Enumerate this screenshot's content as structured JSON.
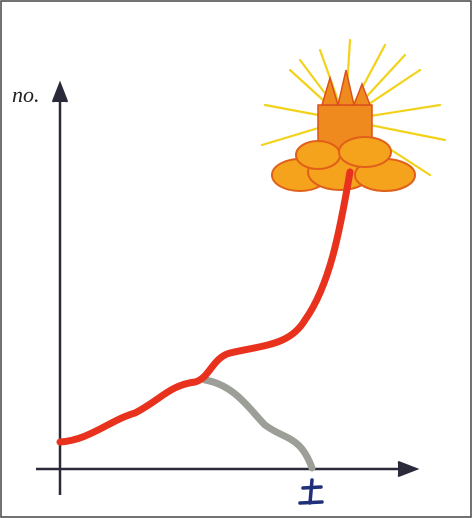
{
  "axes": {
    "y_label": "no."
  }
}
